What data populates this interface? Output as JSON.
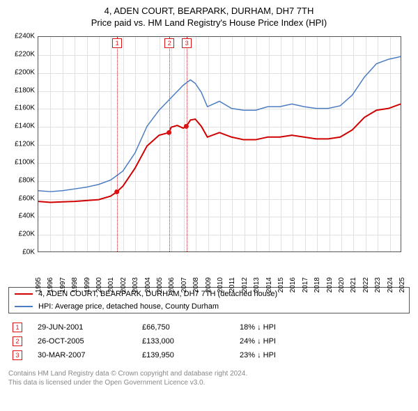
{
  "title": "4, ADEN COURT, BEARPARK, DURHAM, DH7 7TH",
  "subtitle": "Price paid vs. HM Land Registry's House Price Index (HPI)",
  "chart": {
    "type": "line",
    "background_color": "#ffffff",
    "grid_color": "#e0e0e0",
    "border_color": "#555555",
    "x": {
      "min": 1995,
      "max": 2025,
      "ticks": [
        1995,
        1996,
        1997,
        1998,
        1999,
        2000,
        2001,
        2002,
        2003,
        2004,
        2005,
        2006,
        2007,
        2008,
        2009,
        2010,
        2011,
        2012,
        2013,
        2014,
        2015,
        2016,
        2017,
        2018,
        2019,
        2020,
        2021,
        2022,
        2023,
        2024,
        2025
      ],
      "label_fontsize": 10
    },
    "y": {
      "min": 0,
      "max": 240000,
      "step": 20000,
      "prefix": "£",
      "suffix": "K",
      "divisor": 1000,
      "label_fontsize": 10
    },
    "markers": [
      {
        "id": "1",
        "x": 2001.5
      },
      {
        "id": "2",
        "x": 2005.82
      },
      {
        "id": "3",
        "x": 2007.25
      }
    ],
    "marker_color": "#d11",
    "series": [
      {
        "name": "4, ADEN COURT, BEARPARK, DURHAM, DH7 7TH (detached house)",
        "color": "#d00000",
        "line_width": 2,
        "points": [
          [
            1995,
            56000
          ],
          [
            1996,
            55000
          ],
          [
            1997,
            55500
          ],
          [
            1998,
            56000
          ],
          [
            1999,
            57000
          ],
          [
            2000,
            58000
          ],
          [
            2001,
            62000
          ],
          [
            2001.5,
            66750
          ],
          [
            2002,
            73000
          ],
          [
            2003,
            93000
          ],
          [
            2004,
            118000
          ],
          [
            2005,
            130000
          ],
          [
            2005.82,
            133000
          ],
          [
            2006,
            139000
          ],
          [
            2006.5,
            141000
          ],
          [
            2007,
            138000
          ],
          [
            2007.25,
            139950
          ],
          [
            2007.6,
            147000
          ],
          [
            2008,
            148000
          ],
          [
            2008.5,
            140000
          ],
          [
            2009,
            128000
          ],
          [
            2010,
            133000
          ],
          [
            2011,
            128000
          ],
          [
            2012,
            125000
          ],
          [
            2013,
            125000
          ],
          [
            2014,
            128000
          ],
          [
            2015,
            128000
          ],
          [
            2016,
            130000
          ],
          [
            2017,
            128000
          ],
          [
            2018,
            126000
          ],
          [
            2019,
            126000
          ],
          [
            2020,
            128000
          ],
          [
            2021,
            136000
          ],
          [
            2022,
            150000
          ],
          [
            2023,
            158000
          ],
          [
            2024,
            160000
          ],
          [
            2025,
            165000
          ]
        ]
      },
      {
        "name": "HPI: Average price, detached house, County Durham",
        "color": "#4a7cc4",
        "line_width": 1.5,
        "points": [
          [
            1995,
            68000
          ],
          [
            1996,
            67000
          ],
          [
            1997,
            68000
          ],
          [
            1998,
            70000
          ],
          [
            1999,
            72000
          ],
          [
            2000,
            75000
          ],
          [
            2001,
            80000
          ],
          [
            2002,
            90000
          ],
          [
            2003,
            110000
          ],
          [
            2004,
            140000
          ],
          [
            2005,
            158000
          ],
          [
            2006,
            172000
          ],
          [
            2007,
            186000
          ],
          [
            2007.6,
            192000
          ],
          [
            2008,
            188000
          ],
          [
            2008.5,
            178000
          ],
          [
            2009,
            162000
          ],
          [
            2010,
            168000
          ],
          [
            2011,
            160000
          ],
          [
            2012,
            158000
          ],
          [
            2013,
            158000
          ],
          [
            2014,
            162000
          ],
          [
            2015,
            162000
          ],
          [
            2016,
            165000
          ],
          [
            2017,
            162000
          ],
          [
            2018,
            160000
          ],
          [
            2019,
            160000
          ],
          [
            2020,
            163000
          ],
          [
            2021,
            175000
          ],
          [
            2022,
            195000
          ],
          [
            2023,
            210000
          ],
          [
            2024,
            215000
          ],
          [
            2025,
            218000
          ]
        ]
      }
    ]
  },
  "legend": {
    "entries": [
      {
        "color": "#d00000",
        "label": "4, ADEN COURT, BEARPARK, DURHAM, DH7 7TH (detached house)"
      },
      {
        "color": "#4a7cc4",
        "label": "HPI: Average price, detached house, County Durham"
      }
    ]
  },
  "sales": [
    {
      "id": "1",
      "date": "29-JUN-2001",
      "price": "£66,750",
      "change": "18% ↓ HPI"
    },
    {
      "id": "2",
      "date": "26-OCT-2005",
      "price": "£133,000",
      "change": "24% ↓ HPI"
    },
    {
      "id": "3",
      "date": "30-MAR-2007",
      "price": "£139,950",
      "change": "23% ↓ HPI"
    }
  ],
  "sale_points": [
    {
      "x": 2001.5,
      "y": 66750
    },
    {
      "x": 2005.82,
      "y": 133000
    },
    {
      "x": 2007.25,
      "y": 139950
    }
  ],
  "footer": {
    "line1": "Contains HM Land Registry data © Crown copyright and database right 2024.",
    "line2": "This data is licensed under the Open Government Licence v3.0."
  }
}
